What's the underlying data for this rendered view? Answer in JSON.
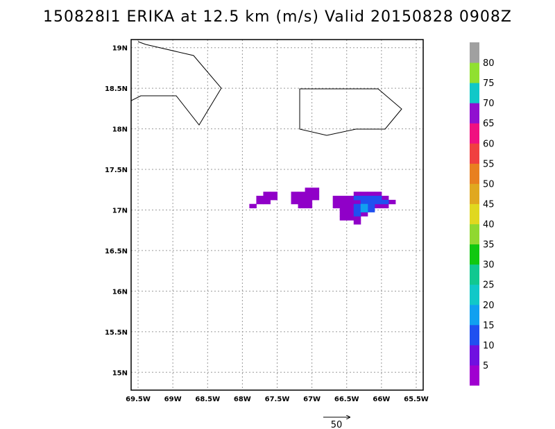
{
  "title": "150828I1 ERIKA at 12.5 km (m/s) Valid 20150828  0908Z",
  "map": {
    "lat_ticks": [
      "19N",
      "18.5N",
      "18N",
      "17.5N",
      "17N",
      "16.5N",
      "16N",
      "15.5N",
      "15N"
    ],
    "lon_ticks": [
      "69.5W",
      "69W",
      "68.5W",
      "68W",
      "67.5W",
      "67W",
      "66.5W",
      "66W",
      "65.5W"
    ],
    "gridlines": "dotted",
    "extent": {
      "west": 69.6,
      "east": 65.4,
      "south": 14.78,
      "north": 19.1
    }
  },
  "colorbar": {
    "labels": [
      "5",
      "10",
      "15",
      "20",
      "25",
      "30",
      "35",
      "40",
      "45",
      "50",
      "55",
      "60",
      "65",
      "70",
      "75",
      "80"
    ],
    "colors": [
      "#a000d0",
      "#7010e0",
      "#2050f0",
      "#10a0f0",
      "#10c8c8",
      "#10c890",
      "#10c810",
      "#90d830",
      "#e0d820",
      "#e0a820",
      "#e88020",
      "#f04040",
      "#f01080",
      "#9010d0",
      "#10c8c8",
      "#90e030",
      "#a0a0a0"
    ]
  },
  "reference_vector": {
    "label": "50"
  },
  "wind_regions": [
    {
      "name": "west",
      "color": "#9000c8",
      "cells": [
        [
          -67.85,
          17.05
        ],
        [
          -67.75,
          17.1
        ],
        [
          -67.65,
          17.1
        ],
        [
          -67.75,
          17.15
        ],
        [
          -67.65,
          17.15
        ],
        [
          -67.65,
          17.2
        ],
        [
          -67.55,
          17.15
        ],
        [
          -67.55,
          17.2
        ]
      ]
    },
    {
      "name": "central",
      "color": "#9000c8",
      "cells": [
        [
          -67.25,
          17.1
        ],
        [
          -67.15,
          17.1
        ],
        [
          -67.05,
          17.1
        ],
        [
          -67.25,
          17.15
        ],
        [
          -67.15,
          17.15
        ],
        [
          -67.05,
          17.15
        ],
        [
          -66.95,
          17.15
        ],
        [
          -67.25,
          17.2
        ],
        [
          -67.15,
          17.2
        ],
        [
          -67.05,
          17.2
        ],
        [
          -66.95,
          17.2
        ],
        [
          -67.05,
          17.25
        ],
        [
          -66.95,
          17.25
        ],
        [
          -67.15,
          17.05
        ],
        [
          -67.05,
          17.05
        ]
      ]
    },
    {
      "name": "east",
      "color": "#9000c8",
      "cells": [
        [
          -66.65,
          17.1
        ],
        [
          -66.55,
          17.1
        ],
        [
          -66.45,
          17.1
        ],
        [
          -66.35,
          17.1
        ],
        [
          -66.65,
          17.15
        ],
        [
          -66.55,
          17.15
        ],
        [
          -66.45,
          17.15
        ],
        [
          -66.65,
          17.05
        ],
        [
          -66.55,
          17.05
        ],
        [
          -66.45,
          17.05
        ],
        [
          -66.55,
          17.0
        ],
        [
          -66.45,
          17.0
        ],
        [
          -66.55,
          16.95
        ],
        [
          -66.45,
          16.95
        ],
        [
          -66.35,
          16.95
        ],
        [
          -66.55,
          16.9
        ],
        [
          -66.45,
          16.9
        ],
        [
          -66.35,
          16.9
        ],
        [
          -66.35,
          16.85
        ],
        [
          -66.35,
          17.2
        ],
        [
          -66.25,
          17.2
        ],
        [
          -66.15,
          17.2
        ],
        [
          -66.05,
          17.2
        ],
        [
          -65.95,
          17.15
        ],
        [
          -65.85,
          17.1
        ],
        [
          -65.95,
          17.05
        ],
        [
          -66.05,
          17.05
        ],
        [
          -66.25,
          16.95
        ]
      ]
    },
    {
      "name": "east-core",
      "color": "#2050f0",
      "cells": [
        [
          -66.35,
          17.15
        ],
        [
          -66.25,
          17.15
        ],
        [
          -66.15,
          17.15
        ],
        [
          -66.05,
          17.15
        ],
        [
          -66.35,
          17.05
        ],
        [
          -66.25,
          17.05
        ],
        [
          -66.15,
          17.1
        ],
        [
          -66.05,
          17.1
        ],
        [
          -65.95,
          17.1
        ],
        [
          -66.15,
          17.05
        ],
        [
          -66.35,
          17.0
        ],
        [
          -66.15,
          17.0
        ],
        [
          -66.25,
          17.1
        ],
        [
          -66.35,
          16.95
        ]
      ]
    },
    {
      "name": "east-max",
      "color": "#10a0f0",
      "cells": [
        [
          -66.25,
          17.0
        ],
        [
          -66.25,
          17.05
        ]
      ]
    }
  ]
}
